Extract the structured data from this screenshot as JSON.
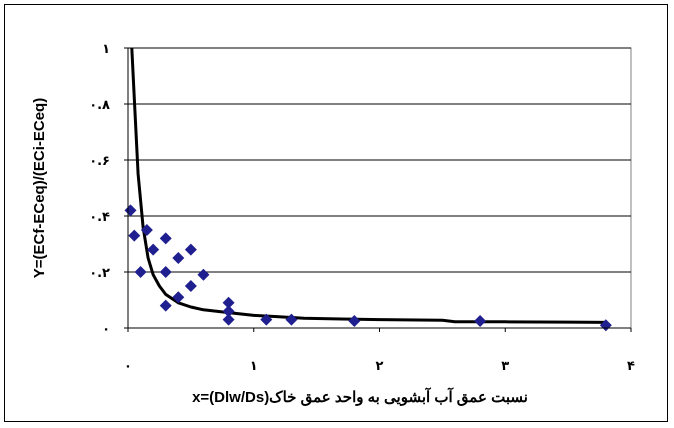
{
  "chart_data": {
    "type": "scatter",
    "xlabel": "نسبت عمق آب آبشویی به واحد عمق خاک(Dlw/Ds)=x",
    "ylabel": "Y=(ECf-ECeq)/(ECi-ECeq)",
    "xlim": [
      0,
      4
    ],
    "ylim": [
      0,
      1
    ],
    "grid": true,
    "x_ticks": [
      0,
      1,
      2,
      3,
      4
    ],
    "x_tick_labels": [
      "۰",
      "۱",
      "۲",
      "۳",
      "۴"
    ],
    "y_ticks": [
      0,
      0.2,
      0.4,
      0.6,
      0.8,
      1
    ],
    "y_tick_labels": [
      "۰",
      "۰.۲",
      "۰.۴",
      "۰.۶",
      "۰.۸",
      "۱"
    ],
    "series": [
      {
        "kind": "points",
        "marker": "diamond",
        "color": "#1f1f8f",
        "points": [
          [
            0.02,
            0.42
          ],
          [
            0.05,
            0.33
          ],
          [
            0.1,
            0.2
          ],
          [
            0.15,
            0.35
          ],
          [
            0.2,
            0.28
          ],
          [
            0.3,
            0.32
          ],
          [
            0.3,
            0.2
          ],
          [
            0.3,
            0.08
          ],
          [
            0.4,
            0.25
          ],
          [
            0.4,
            0.11
          ],
          [
            0.5,
            0.28
          ],
          [
            0.5,
            0.15
          ],
          [
            0.6,
            0.19
          ],
          [
            0.8,
            0.09
          ],
          [
            0.8,
            0.06
          ],
          [
            0.8,
            0.03
          ],
          [
            1.1,
            0.03
          ],
          [
            1.3,
            0.03
          ],
          [
            1.8,
            0.025
          ],
          [
            2.8,
            0.025
          ],
          [
            3.8,
            0.01
          ]
        ]
      },
      {
        "kind": "curve",
        "color": "#000000",
        "points": [
          [
            0.03,
            1.0
          ],
          [
            0.05,
            0.82
          ],
          [
            0.08,
            0.55
          ],
          [
            0.12,
            0.36
          ],
          [
            0.16,
            0.25
          ],
          [
            0.2,
            0.19
          ],
          [
            0.25,
            0.15
          ],
          [
            0.3,
            0.12
          ],
          [
            0.4,
            0.09
          ],
          [
            0.5,
            0.075
          ],
          [
            0.6,
            0.065
          ],
          [
            0.8,
            0.055
          ],
          [
            1.0,
            0.045
          ],
          [
            1.2,
            0.04
          ],
          [
            1.4,
            0.035
          ],
          [
            1.7,
            0.032
          ],
          [
            2.0,
            0.03
          ],
          [
            2.5,
            0.028
          ],
          [
            2.6,
            0.022
          ],
          [
            3.0,
            0.022
          ],
          [
            3.5,
            0.021
          ],
          [
            3.8,
            0.02
          ]
        ]
      }
    ]
  }
}
